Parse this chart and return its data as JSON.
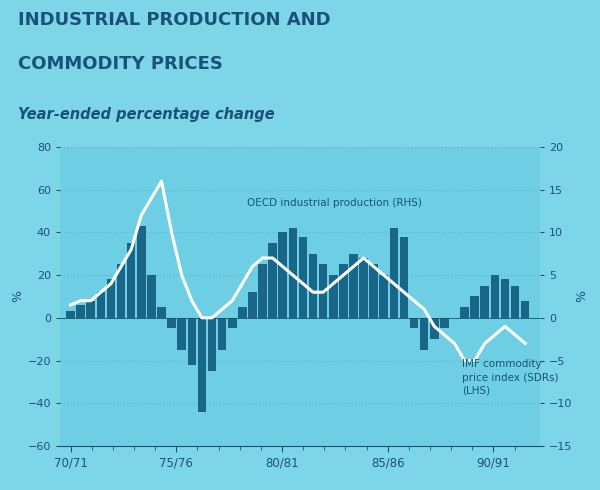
{
  "title_line1": "INDUSTRIAL PRODUCTION AND",
  "title_line2": "COMMODITY PRICES",
  "subtitle": "Year-ended percentage change",
  "bg_color": "#7dd6e8",
  "plot_bg_color": "#6ecfe4",
  "title_color": "#1a5276",
  "subtitle_color": "#1a5276",
  "bar_color": "#1a6688",
  "line_color": "#ffffff",
  "grid_color": "#5bbccc",
  "lhs_ylim": [
    -60,
    80
  ],
  "rhs_ylim": [
    -15,
    20
  ],
  "lhs_yticks": [
    -60,
    -40,
    -20,
    0,
    20,
    40,
    60,
    80
  ],
  "rhs_yticks": [
    -15,
    -10,
    -5,
    0,
    5,
    10,
    15,
    20
  ],
  "xlabel_ticks": [
    "70/71",
    "75/76",
    "80/81",
    "85/86",
    "90/91"
  ],
  "oecd_label": "OECD industrial production (RHS)",
  "imf_label": "IMF commodity\nprice index (SDRs)\n(LHS)",
  "imf_data": [
    3,
    6,
    8,
    12,
    18,
    25,
    35,
    43,
    20,
    5,
    -5,
    -15,
    -22,
    -44,
    -25,
    -15,
    -5,
    5,
    12,
    25,
    35,
    40,
    42,
    38,
    30,
    25,
    20,
    25,
    30,
    28,
    25,
    20,
    42,
    38,
    -5,
    -15,
    -10,
    -5,
    0,
    5,
    10,
    15,
    20,
    18,
    15,
    8
  ],
  "oecd_data": [
    1.5,
    2.0,
    2.0,
    3.0,
    4.0,
    6.0,
    8.0,
    12.0,
    14.0,
    16.0,
    10.0,
    5.0,
    2.0,
    0.0,
    0.0,
    1.0,
    2.0,
    4.0,
    6.0,
    7.0,
    7.0,
    6.0,
    5.0,
    4.0,
    3.0,
    3.0,
    4.0,
    5.0,
    6.0,
    7.0,
    6.0,
    5.0,
    4.0,
    3.0,
    2.0,
    1.0,
    -1.0,
    -2.0,
    -3.0,
    -5.0,
    -5.0,
    -3.0,
    -2.0,
    -1.0,
    -2.0,
    -3.0
  ]
}
